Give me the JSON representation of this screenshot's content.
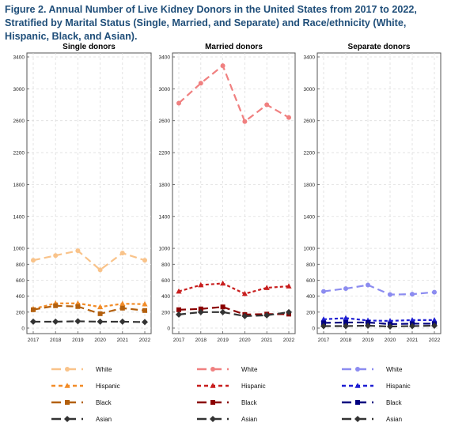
{
  "figure": {
    "title": "Figure 2. Annual Number of Live Kidney Donors in the United States from 2017 to 2022, Stratified by Marital Status (Single, Married, and Separate) and Race/ethnicity (White, Hispanic, Black, and Asian)."
  },
  "chart_data": [
    {
      "type": "line",
      "title": "Single donors",
      "x": [
        "2017",
        "2018",
        "2019",
        "2020",
        "2021",
        "2022"
      ],
      "ylim": [
        0,
        3400
      ],
      "yticks": [
        0,
        200,
        400,
        600,
        800,
        1000,
        1400,
        1800,
        2200,
        2600,
        3000,
        3400
      ],
      "grid": true,
      "legend": "bottom",
      "series": [
        {
          "name": "White",
          "values": [
            850,
            910,
            970,
            730,
            940,
            850
          ],
          "color": "#f9c38a",
          "dash": "long",
          "marker": "circle"
        },
        {
          "name": "Hispanic",
          "values": [
            240,
            310,
            310,
            265,
            305,
            300
          ],
          "color": "#f28c28",
          "dash": "short",
          "marker": "triangle"
        },
        {
          "name": "Black",
          "values": [
            230,
            280,
            270,
            180,
            250,
            220
          ],
          "color": "#b3600e",
          "dash": "long",
          "marker": "square"
        },
        {
          "name": "Asian",
          "values": [
            80,
            80,
            85,
            80,
            80,
            75
          ],
          "color": "#333333",
          "dash": "long",
          "marker": "diamond"
        }
      ]
    },
    {
      "type": "line",
      "title": "Married donors",
      "x": [
        "2017",
        "2018",
        "2019",
        "2020",
        "2021",
        "2022"
      ],
      "ylim": [
        0,
        3400
      ],
      "yticks": [
        0,
        200,
        400,
        600,
        800,
        1000,
        1400,
        1800,
        2200,
        2600,
        3000,
        3400
      ],
      "grid": true,
      "legend": "bottom",
      "series": [
        {
          "name": "White",
          "values": [
            2820,
            3070,
            3290,
            2590,
            2800,
            2640
          ],
          "color": "#f08080",
          "dash": "long",
          "marker": "circle"
        },
        {
          "name": "Hispanic",
          "values": [
            460,
            540,
            560,
            430,
            505,
            525
          ],
          "color": "#c81e1e",
          "dash": "short",
          "marker": "triangle"
        },
        {
          "name": "Black",
          "values": [
            230,
            240,
            265,
            170,
            175,
            175
          ],
          "color": "#8b0000",
          "dash": "long",
          "marker": "square"
        },
        {
          "name": "Asian",
          "values": [
            170,
            200,
            200,
            150,
            160,
            200
          ],
          "color": "#333333",
          "dash": "long",
          "marker": "diamond"
        }
      ]
    },
    {
      "type": "line",
      "title": "Separate donors",
      "x": [
        "2017",
        "2018",
        "2019",
        "2020",
        "2021",
        "2022"
      ],
      "ylim": [
        0,
        3400
      ],
      "yticks": [
        0,
        200,
        400,
        600,
        800,
        1000,
        1400,
        1800,
        2200,
        2600,
        3000,
        3400
      ],
      "grid": true,
      "legend": "bottom",
      "series": [
        {
          "name": "White",
          "values": [
            460,
            495,
            540,
            420,
            425,
            450
          ],
          "color": "#8c8cf0",
          "dash": "long",
          "marker": "circle"
        },
        {
          "name": "Hispanic",
          "values": [
            110,
            125,
            95,
            90,
            100,
            100
          ],
          "color": "#1e1ed2",
          "dash": "short",
          "marker": "triangle"
        },
        {
          "name": "Black",
          "values": [
            65,
            70,
            70,
            50,
            55,
            55
          ],
          "color": "#000080",
          "dash": "long",
          "marker": "square"
        },
        {
          "name": "Asian",
          "values": [
            25,
            25,
            30,
            20,
            25,
            30
          ],
          "color": "#333333",
          "dash": "long",
          "marker": "diamond"
        }
      ]
    }
  ]
}
